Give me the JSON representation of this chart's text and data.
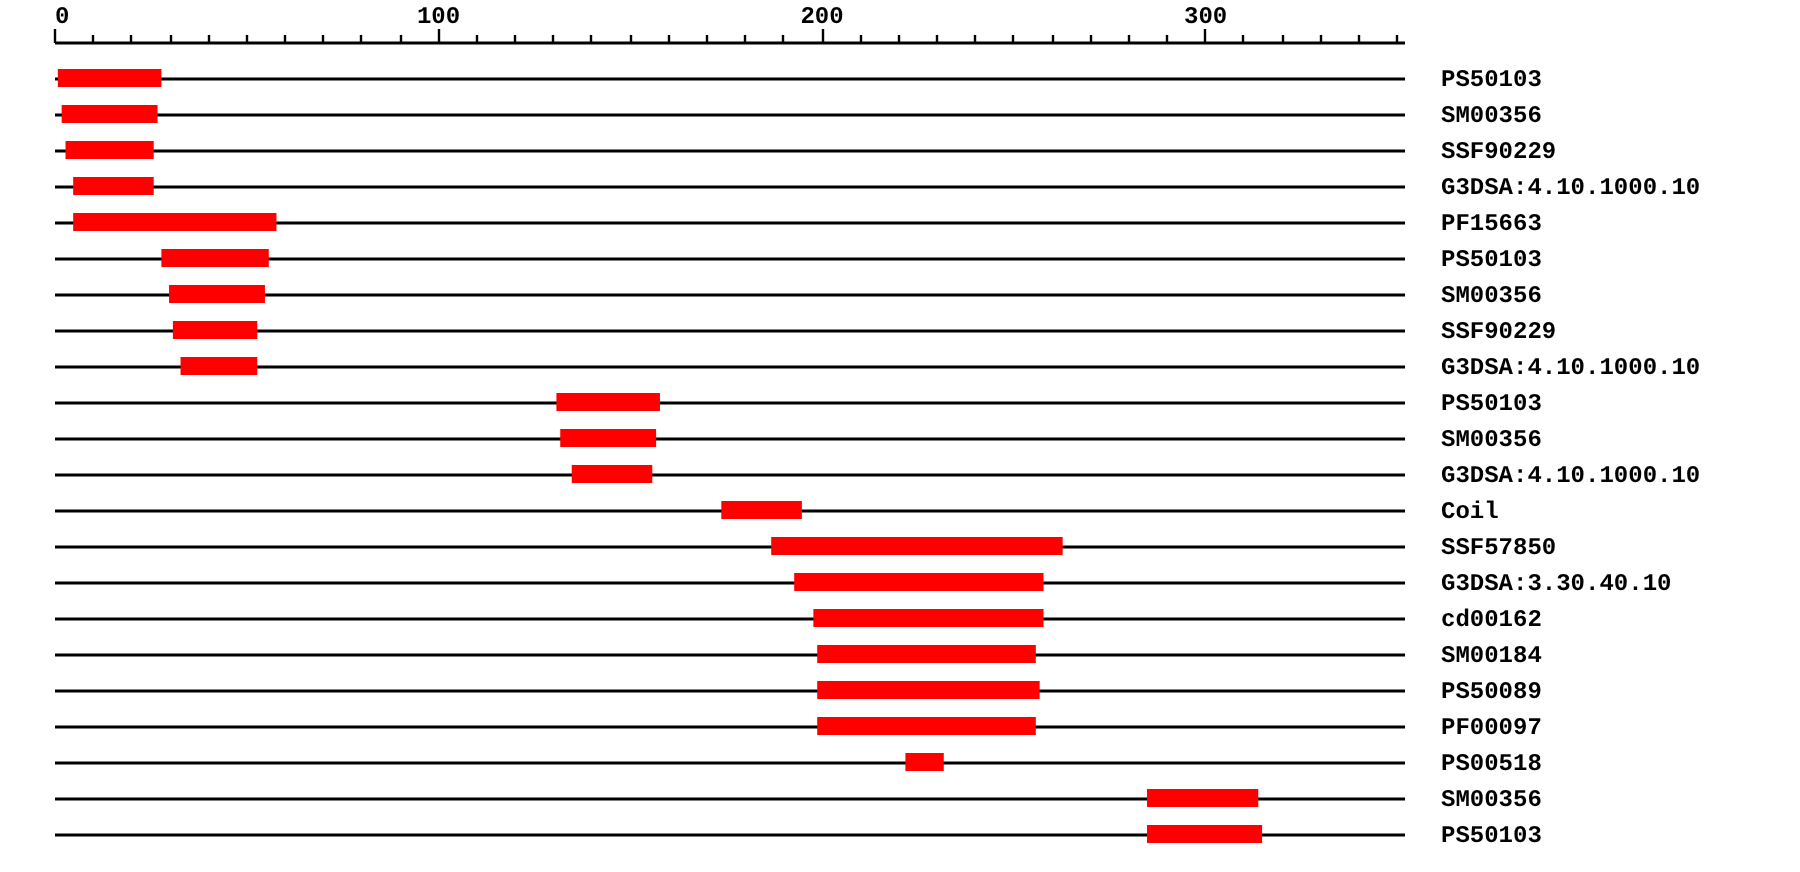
{
  "chart_data": {
    "type": "bar",
    "orientation": "horizontal",
    "color": "#ff0000",
    "grid": "y",
    "categories": [
      "PS50103",
      "SM00356",
      "SSF90229",
      "G3DSA:4.10.1000.10",
      "PF15663",
      "PS50103",
      "SM00356",
      "SSF90229",
      "G3DSA:4.10.1000.10",
      "PS50103",
      "SM00356",
      "G3DSA:4.10.1000.10",
      "Coil",
      "SSF57850",
      "G3DSA:3.30.40.10",
      "cd00162",
      "SM00184",
      "PS50089",
      "PF00097",
      "PS00518",
      "SM00356",
      "PS50103"
    ],
    "base": [
      1,
      2,
      3,
      5,
      5,
      28,
      30,
      31,
      33,
      131,
      132,
      135,
      174,
      187,
      193,
      198,
      199,
      199,
      199,
      222,
      285,
      285
    ],
    "values": [
      27,
      25,
      23,
      21,
      53,
      28,
      25,
      22,
      20,
      27,
      25,
      21,
      21,
      76,
      65,
      60,
      57,
      58,
      57,
      10,
      29,
      30
    ],
    "xlim": [
      0,
      352
    ],
    "xticks": [
      0,
      {
        "value": 10,
        "label": null
      },
      {
        "value": 20,
        "label": null
      },
      {
        "value": 30,
        "label": null
      },
      {
        "value": 40,
        "label": null
      },
      {
        "value": 50,
        "label": null
      },
      {
        "value": 60,
        "label": null
      },
      {
        "value": 70,
        "label": null
      },
      {
        "value": 80,
        "label": null
      },
      {
        "value": 90,
        "label": null
      },
      100,
      {
        "value": 110,
        "label": null
      },
      {
        "value": 120,
        "label": null
      },
      {
        "value": 130,
        "label": null
      },
      {
        "value": 140,
        "label": null
      },
      {
        "value": 150,
        "label": null
      },
      {
        "value": 160,
        "label": null
      },
      {
        "value": 170,
        "label": null
      },
      {
        "value": 180,
        "label": null
      },
      {
        "value": 190,
        "label": null
      },
      200,
      {
        "value": 210,
        "label": null
      },
      {
        "value": 220,
        "label": null
      },
      {
        "value": 230,
        "label": null
      },
      {
        "value": 240,
        "label": null
      },
      {
        "value": 250,
        "label": null
      },
      {
        "value": 260,
        "label": null
      },
      {
        "value": 270,
        "label": null
      },
      {
        "value": 280,
        "label": null
      },
      {
        "value": 290,
        "label": null
      },
      300,
      {
        "value": 310,
        "label": null
      },
      {
        "value": 320,
        "label": null
      },
      {
        "value": 330,
        "label": null
      },
      {
        "value": 340,
        "label": null
      },
      {
        "value": 350,
        "label": null
      }
    ]
  }
}
